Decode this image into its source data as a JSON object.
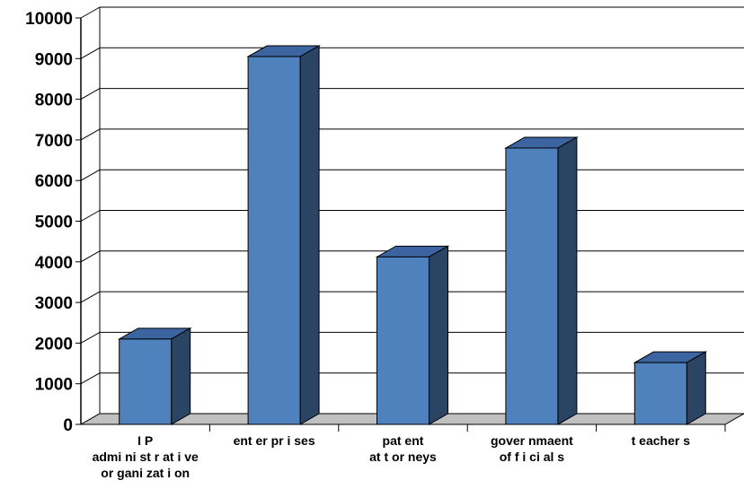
{
  "chart_data": {
    "type": "bar",
    "categories": [
      [
        "I P",
        "admi ni st r at i ve",
        "or gani zat i on"
      ],
      [
        "ent er pr i ses"
      ],
      [
        "pat ent",
        "at t or neys"
      ],
      [
        "gover nmaent",
        "of f i ci al s"
      ],
      [
        "t eacher s"
      ]
    ],
    "values": [
      2100,
      9050,
      4120,
      6800,
      1520
    ],
    "ylim": [
      0,
      10000
    ],
    "yticks": [
      "0",
      "1000",
      "2000",
      "3000",
      "4000",
      "5000",
      "6000",
      "7000",
      "8000",
      "9000",
      "10000"
    ],
    "grid": true,
    "legend": "none",
    "colors": {
      "bar_front": "#4f81bd",
      "bar_top": "#3b64a0",
      "bar_side": "#2a4464",
      "floor": "#c0c0c0",
      "grid": "#000000"
    }
  }
}
